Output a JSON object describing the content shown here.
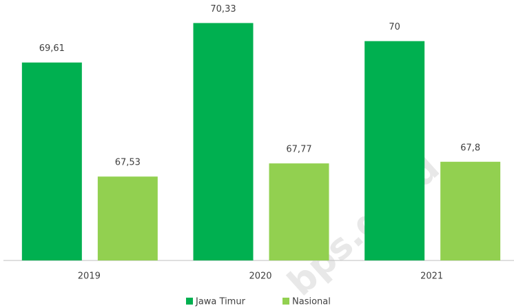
{
  "chart_data": {
    "type": "bar",
    "categories": [
      "2019",
      "2020",
      "2021"
    ],
    "series": [
      {
        "name": "Jawa Timur",
        "color": "#00b050",
        "values": [
          69.61,
          70.33,
          70
        ],
        "value_labels": [
          "69,61",
          "70,33",
          "70"
        ]
      },
      {
        "name": "Nasional",
        "color": "#92d050",
        "values": [
          67.53,
          67.77,
          67.8
        ],
        "value_labels": [
          "67,53",
          "67,77",
          "67,8"
        ]
      }
    ],
    "ylim": [
      66,
      70.75
    ],
    "legend": "bottom",
    "watermark": "bps.go.id"
  }
}
